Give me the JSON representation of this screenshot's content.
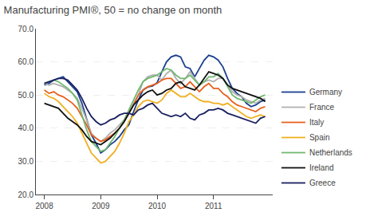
{
  "chart_data": {
    "type": "line",
    "title": "Manufacturing PMI®, 50 = no change on month",
    "x": [
      2008,
      2008.0833333333333,
      2008.1666666666667,
      2008.25,
      2008.3333333333333,
      2008.4166666666667,
      2008.5,
      2008.5833333333333,
      2008.6666666666667,
      2008.75,
      2008.8333333333333,
      2008.9166666666667,
      2009,
      2009.0833333333333,
      2009.1666666666667,
      2009.25,
      2009.3333333333333,
      2009.4166666666667,
      2009.5,
      2009.5833333333333,
      2009.6666666666667,
      2009.75,
      2009.8333333333333,
      2009.9166666666667,
      2010,
      2010.0833333333333,
      2010.1666666666667,
      2010.25,
      2010.3333333333333,
      2010.4166666666667,
      2010.5,
      2010.5833333333333,
      2010.6666666666667,
      2010.75,
      2010.8333333333333,
      2010.9166666666667,
      2011,
      2011.0833333333333,
      2011.1666666666667,
      2011.25,
      2011.3333333333333,
      2011.4166666666667,
      2011.5,
      2011.5833333333333,
      2011.6666666666667,
      2011.75,
      2011.8333333333333,
      2011.9166666666667
    ],
    "xlim": [
      2007.85,
      2012.05
    ],
    "xticks": [
      2008,
      2009,
      2010,
      2011
    ],
    "ylim": [
      20.0,
      70.0
    ],
    "yticks": [
      {
        "value": 20.0,
        "label": "20.0"
      },
      {
        "value": 30.0,
        "label": "30.0"
      },
      {
        "value": 40.0,
        "label": "40.0"
      },
      {
        "value": 50.0,
        "label": "50.0"
      },
      {
        "value": 60.0,
        "label": "60.0"
      },
      {
        "value": 70.0,
        "label": "70.0"
      }
    ],
    "grid": true,
    "legend": "lower right",
    "series": [
      {
        "name": "Germany",
        "color": "#1a3f8f",
        "values": [
          53.0,
          53.5,
          54.5,
          55.0,
          55.5,
          54.0,
          52.5,
          51.0,
          47.5,
          42.5,
          38.0,
          35.5,
          32.5,
          33.5,
          35.0,
          36.0,
          37.5,
          39.5,
          41.0,
          45.0,
          48.5,
          51.5,
          52.4,
          52.7,
          53.7,
          57.0,
          60.0,
          61.5,
          62.0,
          61.5,
          58.5,
          58.0,
          55.5,
          58.0,
          60.5,
          62.0,
          61.5,
          60.5,
          58.5,
          55.0,
          52.0,
          50.5,
          49.5,
          47.5,
          46.5,
          47.0,
          48.0,
          48.5
        ]
      },
      {
        "name": "France",
        "color": "#b0b0b0",
        "values": [
          53.5,
          53.0,
          53.5,
          53.0,
          52.5,
          51.5,
          50.5,
          49.0,
          46.0,
          42.5,
          38.5,
          37.0,
          36.0,
          37.0,
          38.5,
          39.5,
          41.0,
          42.5,
          45.0,
          47.5,
          50.0,
          54.0,
          55.5,
          56.0,
          56.0,
          54.5,
          56.5,
          57.5,
          55.0,
          53.5,
          55.0,
          57.0,
          55.0,
          53.0,
          54.0,
          54.5,
          54.0,
          55.0,
          55.0,
          53.0,
          51.0,
          50.0,
          49.5,
          48.5,
          48.0,
          47.5,
          48.5,
          49.0
        ]
      },
      {
        "name": "Italy",
        "color": "#e8601c",
        "values": [
          51.5,
          50.5,
          51.0,
          50.0,
          49.5,
          48.5,
          47.5,
          46.0,
          43.5,
          41.0,
          38.0,
          37.0,
          36.0,
          36.5,
          37.5,
          38.5,
          40.0,
          42.0,
          44.5,
          47.0,
          50.0,
          51.5,
          52.5,
          53.0,
          53.5,
          54.5,
          55.0,
          55.0,
          53.5,
          52.0,
          52.5,
          54.0,
          52.5,
          51.0,
          52.5,
          53.5,
          52.0,
          52.0,
          50.5,
          49.5,
          48.0,
          47.0,
          46.5,
          46.0,
          45.5,
          45.0,
          46.0,
          46.5
        ]
      },
      {
        "name": "Spain",
        "color": "#f0b020",
        "values": [
          50.5,
          49.5,
          49.0,
          48.0,
          46.5,
          45.0,
          43.5,
          41.5,
          38.5,
          35.5,
          32.5,
          31.0,
          29.5,
          30.0,
          31.5,
          33.0,
          35.5,
          38.5,
          42.0,
          44.0,
          46.5,
          48.0,
          48.5,
          48.0,
          47.5,
          48.5,
          50.5,
          51.5,
          50.5,
          49.5,
          49.5,
          50.5,
          49.5,
          48.5,
          48.0,
          48.0,
          47.5,
          47.5,
          47.0,
          47.5,
          46.5,
          45.5,
          44.5,
          43.5,
          43.0,
          43.5,
          44.0,
          43.5
        ]
      },
      {
        "name": "Netherlands",
        "color": "#70b870",
        "values": [
          53.5,
          54.0,
          54.5,
          54.0,
          53.0,
          52.0,
          50.5,
          48.5,
          44.0,
          39.5,
          36.0,
          34.5,
          33.0,
          33.5,
          35.5,
          37.5,
          40.0,
          42.5,
          45.5,
          48.5,
          51.5,
          54.0,
          55.0,
          55.5,
          56.0,
          57.0,
          58.0,
          57.5,
          56.0,
          55.0,
          55.0,
          56.0,
          54.5,
          53.0,
          54.0,
          55.5,
          55.5,
          56.5,
          55.0,
          52.5,
          50.0,
          49.0,
          48.5,
          48.0,
          47.5,
          48.5,
          49.5,
          50.0
        ]
      },
      {
        "name": "Ireland",
        "color": "#111111",
        "values": [
          47.5,
          47.0,
          46.5,
          46.0,
          44.5,
          43.0,
          42.0,
          41.0,
          39.5,
          37.5,
          36.0,
          35.5,
          35.0,
          36.0,
          37.0,
          38.5,
          40.0,
          42.0,
          44.5,
          47.0,
          48.5,
          50.0,
          51.0,
          51.5,
          50.0,
          50.5,
          51.5,
          52.0,
          53.5,
          54.0,
          52.5,
          52.0,
          51.5,
          53.0,
          55.0,
          57.0,
          56.5,
          56.0,
          55.0,
          53.0,
          52.0,
          51.5,
          51.0,
          50.5,
          50.0,
          49.5,
          49.0,
          48.0
        ]
      },
      {
        "name": "Greece",
        "color": "#1a2060",
        "values": [
          53.5,
          54.0,
          54.5,
          55.0,
          55.0,
          54.5,
          53.0,
          51.5,
          49.0,
          46.0,
          43.5,
          42.0,
          41.0,
          41.5,
          42.5,
          43.0,
          44.0,
          44.5,
          44.5,
          44.0,
          45.5,
          46.0,
          47.0,
          47.5,
          46.0,
          44.5,
          44.0,
          43.5,
          44.0,
          43.5,
          44.5,
          43.0,
          42.5,
          44.0,
          44.5,
          45.5,
          45.5,
          46.0,
          45.5,
          44.5,
          44.0,
          43.5,
          43.0,
          42.5,
          42.0,
          41.5,
          43.0,
          43.5
        ]
      }
    ]
  }
}
